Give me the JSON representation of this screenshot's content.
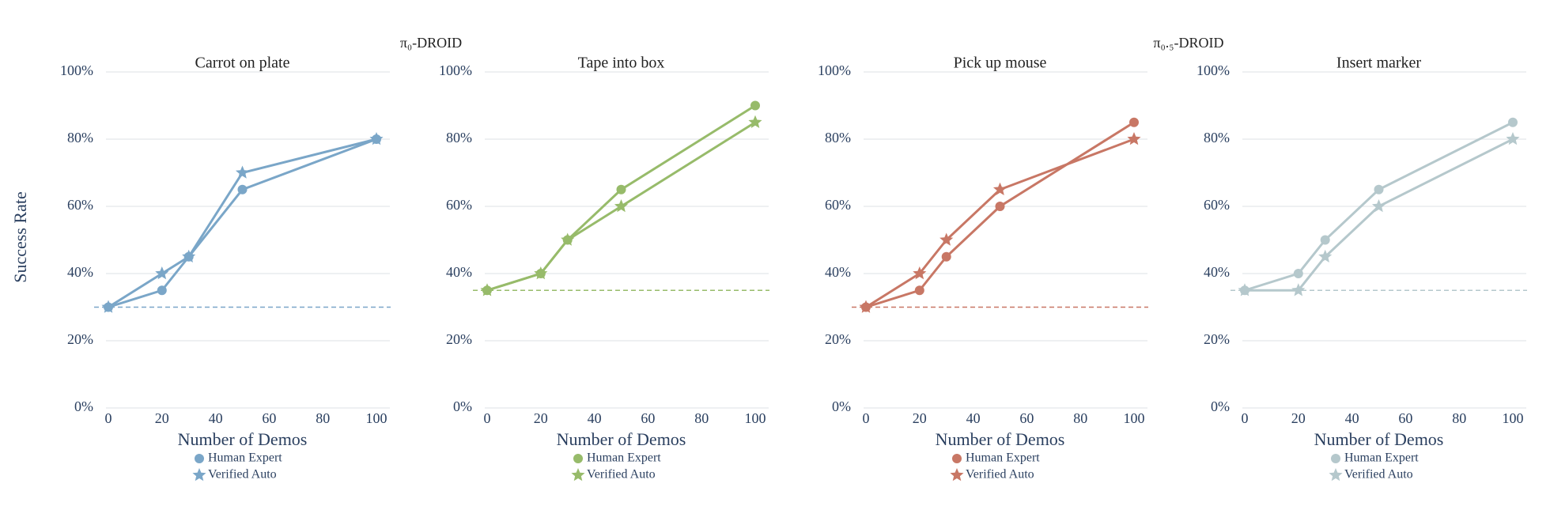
{
  "y_label": "Success Rate",
  "group_titles": [
    "π₀-DROID",
    "π₀.₅-DROID"
  ],
  "chart_data": [
    {
      "type": "line",
      "title": "Carrot on plate",
      "x_label": "Number of Demos",
      "x": [
        0,
        20,
        30,
        50,
        100
      ],
      "xlim": [
        0,
        100
      ],
      "xticks": [
        0,
        20,
        40,
        60,
        80,
        100
      ],
      "ylim": [
        0,
        100
      ],
      "yticks": [
        {
          "value": 0,
          "label": "0%"
        },
        {
          "value": 20,
          "label": "20%"
        },
        {
          "value": 40,
          "label": "40%"
        },
        {
          "value": 60,
          "label": "60%"
        },
        {
          "value": 80,
          "label": "80%"
        },
        {
          "value": 100,
          "label": "100%"
        }
      ],
      "grid": true,
      "baseline": 30,
      "series": [
        {
          "name": "Human Expert",
          "color": "#7aa6c8",
          "marker": "circle",
          "values": [
            30,
            35,
            45,
            65,
            80
          ]
        },
        {
          "name": "Verified Auto",
          "color": "#7aa6c8",
          "marker": "star",
          "values": [
            30,
            40,
            45,
            70,
            80
          ]
        }
      ]
    },
    {
      "type": "line",
      "title": "Tape into box",
      "x_label": "Number of Demos",
      "x": [
        0,
        20,
        30,
        50,
        100
      ],
      "xlim": [
        0,
        100
      ],
      "xticks": [
        0,
        20,
        40,
        60,
        80,
        100
      ],
      "ylim": [
        0,
        100
      ],
      "yticks": [
        {
          "value": 0,
          "label": "0%"
        },
        {
          "value": 20,
          "label": "20%"
        },
        {
          "value": 40,
          "label": "40%"
        },
        {
          "value": 60,
          "label": "60%"
        },
        {
          "value": 80,
          "label": "80%"
        },
        {
          "value": 100,
          "label": "100%"
        }
      ],
      "grid": true,
      "baseline": 35,
      "series": [
        {
          "name": "Human Expert",
          "color": "#97bb6a",
          "marker": "circle",
          "values": [
            35,
            40,
            50,
            65,
            90
          ]
        },
        {
          "name": "Verified Auto",
          "color": "#97bb6a",
          "marker": "star",
          "values": [
            35,
            40,
            50,
            60,
            85
          ]
        }
      ]
    },
    {
      "type": "line",
      "title": "Pick up mouse",
      "x_label": "Number of Demos",
      "x": [
        0,
        20,
        30,
        50,
        100
      ],
      "xlim": [
        0,
        100
      ],
      "xticks": [
        0,
        20,
        40,
        60,
        80,
        100
      ],
      "ylim": [
        0,
        100
      ],
      "yticks": [
        {
          "value": 0,
          "label": "0%"
        },
        {
          "value": 20,
          "label": "20%"
        },
        {
          "value": 40,
          "label": "40%"
        },
        {
          "value": 60,
          "label": "60%"
        },
        {
          "value": 80,
          "label": "80%"
        },
        {
          "value": 100,
          "label": "100%"
        }
      ],
      "grid": true,
      "baseline": 30,
      "series": [
        {
          "name": "Human Expert",
          "color": "#c87765",
          "marker": "circle",
          "values": [
            30,
            35,
            45,
            60,
            85
          ]
        },
        {
          "name": "Verified Auto",
          "color": "#c87765",
          "marker": "star",
          "values": [
            30,
            40,
            50,
            65,
            80
          ]
        }
      ]
    },
    {
      "type": "line",
      "title": "Insert marker",
      "x_label": "Number of Demos",
      "x": [
        0,
        20,
        30,
        50,
        100
      ],
      "xlim": [
        0,
        100
      ],
      "xticks": [
        0,
        20,
        40,
        60,
        80,
        100
      ],
      "ylim": [
        0,
        100
      ],
      "yticks": [
        {
          "value": 0,
          "label": "0%"
        },
        {
          "value": 20,
          "label": "20%"
        },
        {
          "value": 40,
          "label": "40%"
        },
        {
          "value": 60,
          "label": "60%"
        },
        {
          "value": 80,
          "label": "80%"
        },
        {
          "value": 100,
          "label": "100%"
        }
      ],
      "grid": true,
      "baseline": 35,
      "series": [
        {
          "name": "Human Expert",
          "color": "#b5c8cc",
          "marker": "circle",
          "values": [
            35,
            40,
            50,
            65,
            85
          ]
        },
        {
          "name": "Verified Auto",
          "color": "#b5c8cc",
          "marker": "star",
          "values": [
            35,
            35,
            45,
            60,
            80
          ]
        }
      ]
    }
  ]
}
